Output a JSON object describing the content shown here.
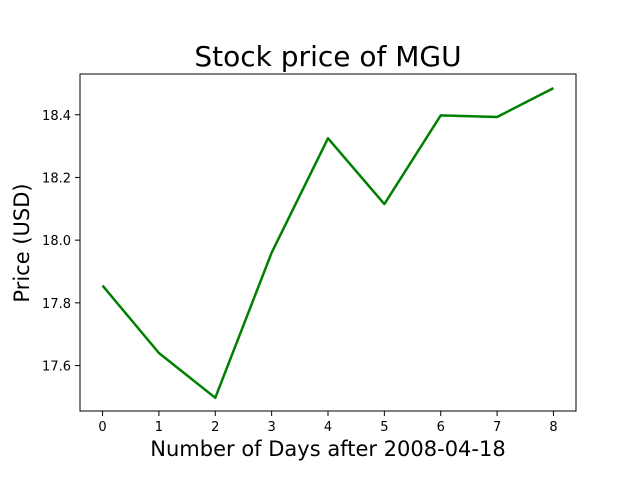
{
  "chart_data": {
    "type": "line",
    "title": "Stock price of MGU",
    "xlabel": "Number of Days after 2008-04-18",
    "ylabel": "Price (USD)",
    "x": [
      0,
      1,
      2,
      3,
      4,
      5,
      6,
      7,
      8
    ],
    "series": [
      {
        "values": [
          17.855,
          17.64,
          17.497,
          17.96,
          18.325,
          18.115,
          18.398,
          18.393,
          18.485
        ],
        "color": "#008000"
      }
    ],
    "xlim": [
      -0.4,
      8.4
    ],
    "ylim": [
      17.455,
      18.53
    ],
    "xticks": [
      0,
      1,
      2,
      3,
      4,
      5,
      6,
      7,
      8
    ],
    "xtick_labels": [
      "0",
      "1",
      "2",
      "3",
      "4",
      "5",
      "6",
      "7",
      "8"
    ],
    "yticks": [
      17.6,
      17.8,
      18.0,
      18.2,
      18.4
    ],
    "ytick_labels": [
      "17.6",
      "17.8",
      "18.0",
      "18.2",
      "18.4"
    ],
    "grid": false,
    "legend": "none"
  }
}
